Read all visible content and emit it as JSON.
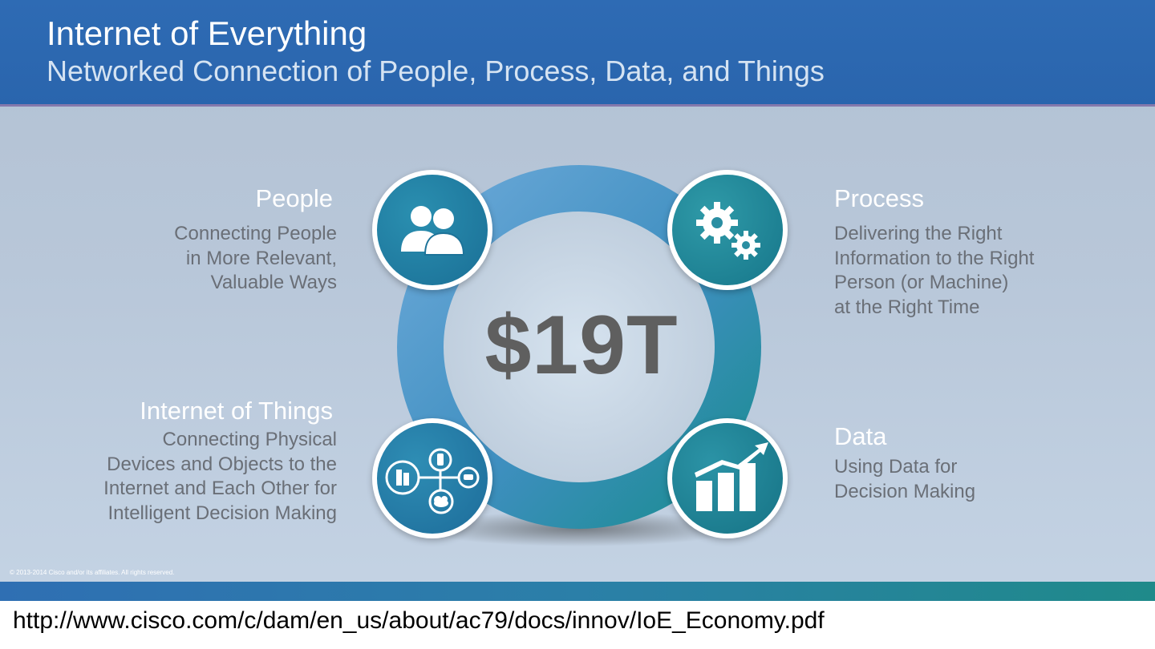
{
  "header": {
    "title": "Internet of Everything",
    "subtitle": "Networked Connection of People, Process, Data, and Things"
  },
  "center": {
    "value": "$19T"
  },
  "sections": {
    "people": {
      "heading": "People",
      "lines": [
        "Connecting People",
        "in More Relevant,",
        "Valuable Ways"
      ],
      "icon": "people-icon"
    },
    "process": {
      "heading": "Process",
      "lines": [
        "Delivering the Right",
        "Information to the Right",
        "Person (or Machine)",
        "at the Right Time"
      ],
      "icon": "gears-icon"
    },
    "iot": {
      "heading": "Internet of Things",
      "lines": [
        "Connecting Physical",
        "Devices and Objects to the",
        "Internet and Each Other for",
        "Intelligent Decision Making"
      ],
      "icon": "connected-devices-icon"
    },
    "data": {
      "heading": "Data",
      "lines": [
        "Using Data for",
        "Decision Making"
      ],
      "icon": "bar-chart-growth-icon"
    }
  },
  "copyright": "© 2013-2014 Cisco and/or its affiliates. All rights reserved.",
  "source_url": "http://www.cisco.com/c/dam/en_us/about/ac79/docs/innov/IoE_Economy.pdf",
  "colors": {
    "header_blue": "#2c68b0",
    "ring_blue": "#5a9fd0",
    "ring_teal": "#1f8f96",
    "body_text": "#6a6f77"
  }
}
